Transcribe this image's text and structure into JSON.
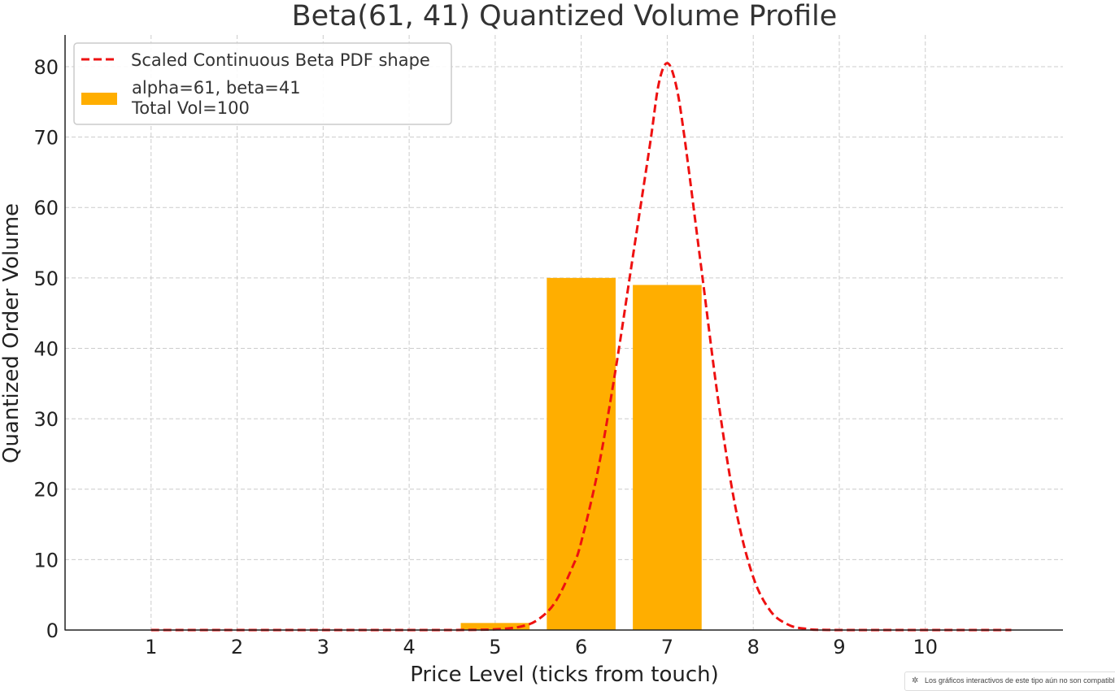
{
  "chart_data": {
    "type": "bar",
    "title": "Beta(61, 41) Quantized Volume Profile",
    "xlabel": "Price Level (ticks from touch)",
    "ylabel": "Quantized Order Volume",
    "xlim": [
      0.0,
      11.6
    ],
    "ylim": [
      0,
      84.5
    ],
    "xticks": [
      1,
      2,
      3,
      4,
      5,
      6,
      7,
      8,
      9,
      10
    ],
    "yticks": [
      0,
      10,
      20,
      30,
      40,
      50,
      60,
      70,
      80
    ],
    "grid": true,
    "legend_position": "top-left",
    "bar_width": 0.8,
    "categories": [
      1,
      2,
      3,
      4,
      5,
      6,
      7,
      8,
      9,
      10
    ],
    "series": [
      {
        "name": "alpha=61, beta=41\nTotal Vol=100",
        "kind": "bar",
        "color": "#FFAE00",
        "values": [
          0,
          0,
          0,
          0,
          1,
          50,
          49,
          0,
          0,
          0
        ]
      },
      {
        "name": "Scaled Continuous Beta PDF shape",
        "kind": "line",
        "style": "dashed",
        "color": "#EE1111",
        "x": [
          1.0,
          4.0,
          4.5,
          5.0,
          5.3,
          5.5,
          5.7,
          5.9,
          6.0,
          6.2,
          6.4,
          6.6,
          6.8,
          6.9,
          7.0,
          7.1,
          7.2,
          7.4,
          7.6,
          7.8,
          8.0,
          8.2,
          8.4,
          8.6,
          9.0,
          11.0
        ],
        "y": [
          0,
          0,
          0,
          0.1,
          0.5,
          1.5,
          4.0,
          9.0,
          12.5,
          23.0,
          37.0,
          53.0,
          69.0,
          77.5,
          80.5,
          77.5,
          70.0,
          51.0,
          32.0,
          17.0,
          7.5,
          2.7,
          0.8,
          0.2,
          0,
          0
        ]
      }
    ]
  },
  "notice": {
    "text": "Los gráficos interactivos de este tipo aún no son compatibles",
    "icon": "sparkle-icon"
  }
}
